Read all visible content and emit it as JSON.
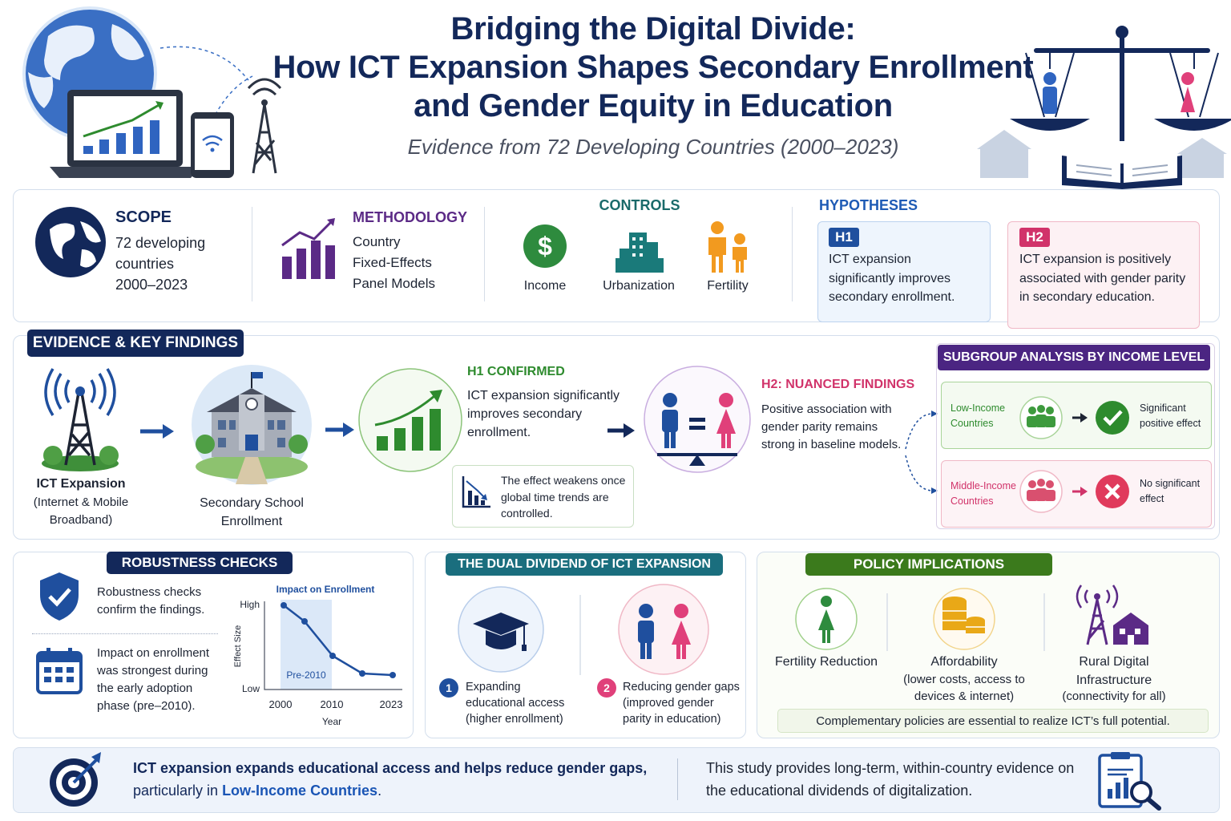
{
  "header": {
    "title_lines": [
      "Bridging the Digital Divide:",
      "How ICT Expansion Shapes Secondary Enrollment",
      "and Gender Equity in Education"
    ],
    "subtitle": "Evidence from 72 Developing Countries (2000–2023)"
  },
  "overview": {
    "scope": {
      "heading": "SCOPE",
      "lines": [
        "72 developing",
        "countries",
        "2000–2023"
      ]
    },
    "methodology": {
      "heading": "METHODOLOGY",
      "lines": [
        "Country",
        "Fixed-Effects",
        "Panel Models"
      ]
    },
    "controls": {
      "heading": "CONTROLS",
      "items": [
        "Income",
        "Urbanization",
        "Fertility"
      ]
    },
    "hypotheses": {
      "heading": "HYPOTHESES",
      "items": [
        {
          "tag": "H1",
          "text": "ICT expansion significantly improves secondary enrollment."
        },
        {
          "tag": "H2",
          "text": "ICT expansion is positively associated with gender parity in secondary education."
        }
      ]
    }
  },
  "evidence": {
    "heading": "EVIDENCE & KEY FINDINGS",
    "flow": [
      {
        "label": "ICT Expansion",
        "sub": "(Internet & Mobile Broadband)"
      },
      {
        "label": "Secondary School Enrollment"
      }
    ],
    "h1": {
      "heading": "H1 CONFIRMED",
      "text": "ICT expansion significantly improves secondary enrollment.",
      "note": "The effect weakens once global time trends are controlled."
    },
    "h2": {
      "heading": "H2: NUANCED FINDINGS",
      "text": "Positive association with gender parity remains strong in baseline models."
    },
    "subgroup": {
      "heading": "SUBGROUP ANALYSIS BY INCOME LEVEL",
      "rows": [
        {
          "group": "Low-Income Countries",
          "result": "Significant positive effect"
        },
        {
          "group": "Middle-Income Countries",
          "result": "No significant effect"
        }
      ]
    }
  },
  "robustness": {
    "heading": "ROBUSTNESS CHECKS",
    "items": [
      "Robustness checks confirm the findings.",
      "Impact on enrollment was strongest during the early adoption phase (pre–2010)."
    ],
    "chart": {
      "title": "Impact on Enrollment",
      "y_label": "Effect Size",
      "y_ticks": [
        "High",
        "Low"
      ],
      "x_ticks": [
        "2000",
        "2010",
        "2023"
      ],
      "x_label": "Year",
      "shade_label": "Pre-2010"
    }
  },
  "dual": {
    "heading": "THE DUAL DIVIDEND OF ICT EXPANSION",
    "items": [
      {
        "number": "1",
        "text": "Expanding educational access (higher enrollment)"
      },
      {
        "number": "2",
        "text": "Reducing gender gaps (improved gender parity in education)"
      }
    ]
  },
  "policy": {
    "heading": "POLICY IMPLICATIONS",
    "items": [
      {
        "title": "Fertility Reduction"
      },
      {
        "title": "Affordability",
        "sub": "(lower costs, access to devices & internet)"
      },
      {
        "title": "Rural Digital Infrastructure",
        "sub": "(connectivity for all)"
      }
    ],
    "note": "Complementary policies are essential to realize ICT’s full potential."
  },
  "conclusion": {
    "lead": "ICT expansion expands educational access and helps reduce gender gaps,",
    "rest": "particularly in",
    "highlight": "Low-Income Countries",
    "end": ".",
    "side": "This study provides long-term, within-country evidence on the educational dividends of digitalization."
  }
}
